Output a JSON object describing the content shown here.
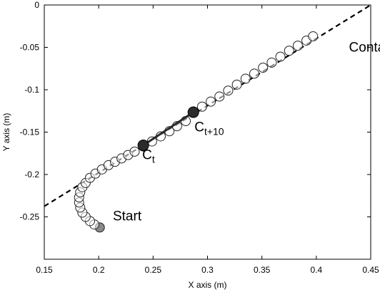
{
  "chart_data": {
    "type": "scatter",
    "title": "",
    "xlabel": "X axis (m)",
    "ylabel": "Y axis (m)",
    "xlim": [
      0.15,
      0.45
    ],
    "ylim": [
      -0.3,
      0.0
    ],
    "xticks": [
      0.15,
      0.2,
      0.25,
      0.3,
      0.35,
      0.4,
      0.45
    ],
    "xtick_labels": [
      "0.15",
      "0.2",
      "0.25",
      "0.3",
      "0.35",
      "0.4",
      "0.45"
    ],
    "yticks": [
      0,
      -0.05,
      -0.1,
      -0.15,
      -0.2,
      -0.25
    ],
    "ytick_labels": [
      "0",
      "-0.05",
      "-0.1",
      "-0.15",
      "-0.2",
      "-0.25"
    ],
    "grid": false,
    "contact_line": {
      "x": [
        0.15,
        0.45
      ],
      "y": [
        -0.2375,
        0.0
      ],
      "style": "dashed"
    },
    "trajectory": {
      "x": [
        0.201,
        0.196,
        0.192,
        0.188,
        0.185,
        0.183,
        0.182,
        0.182,
        0.183,
        0.185,
        0.188,
        0.192,
        0.197,
        0.203,
        0.209,
        0.215,
        0.221,
        0.227,
        0.233,
        0.241,
        0.249,
        0.257,
        0.265,
        0.272,
        0.28,
        0.287,
        0.295,
        0.303,
        0.311,
        0.319,
        0.327,
        0.335,
        0.343,
        0.351,
        0.359,
        0.367,
        0.375,
        0.383,
        0.391,
        0.397
      ],
      "y": [
        -0.2625,
        -0.259,
        -0.255,
        -0.25,
        -0.245,
        -0.239,
        -0.233,
        -0.227,
        -0.221,
        -0.215,
        -0.21,
        -0.204,
        -0.199,
        -0.194,
        -0.189,
        -0.185,
        -0.181,
        -0.177,
        -0.173,
        -0.167,
        -0.161,
        -0.155,
        -0.149,
        -0.143,
        -0.137,
        -0.127,
        -0.12,
        -0.114,
        -0.108,
        -0.101,
        -0.094,
        -0.087,
        -0.081,
        -0.074,
        -0.068,
        -0.061,
        -0.054,
        -0.048,
        -0.042,
        -0.037
      ]
    },
    "highlight_segment": {
      "from": [
        0.241,
        -0.1655
      ],
      "to": [
        0.287,
        -0.1265
      ]
    },
    "annotations": [
      {
        "id": "contact",
        "text": "Contact",
        "x": 0.43,
        "y": -0.055
      },
      {
        "id": "start",
        "text": "Start",
        "x": 0.213,
        "y": -0.254
      },
      {
        "id": "ct",
        "text": "C",
        "sub": "t",
        "x": 0.24,
        "y": -0.182
      },
      {
        "id": "ct10",
        "text": "C",
        "sub": "t+10",
        "x": 0.288,
        "y": -0.149
      }
    ],
    "colors": {
      "marker_fill": "#ffffff",
      "marker_stroke": "#222222",
      "start_marker_fill": "#8a8a8a",
      "highlight_fill": "#2b2b2b",
      "line": "#000000"
    }
  }
}
